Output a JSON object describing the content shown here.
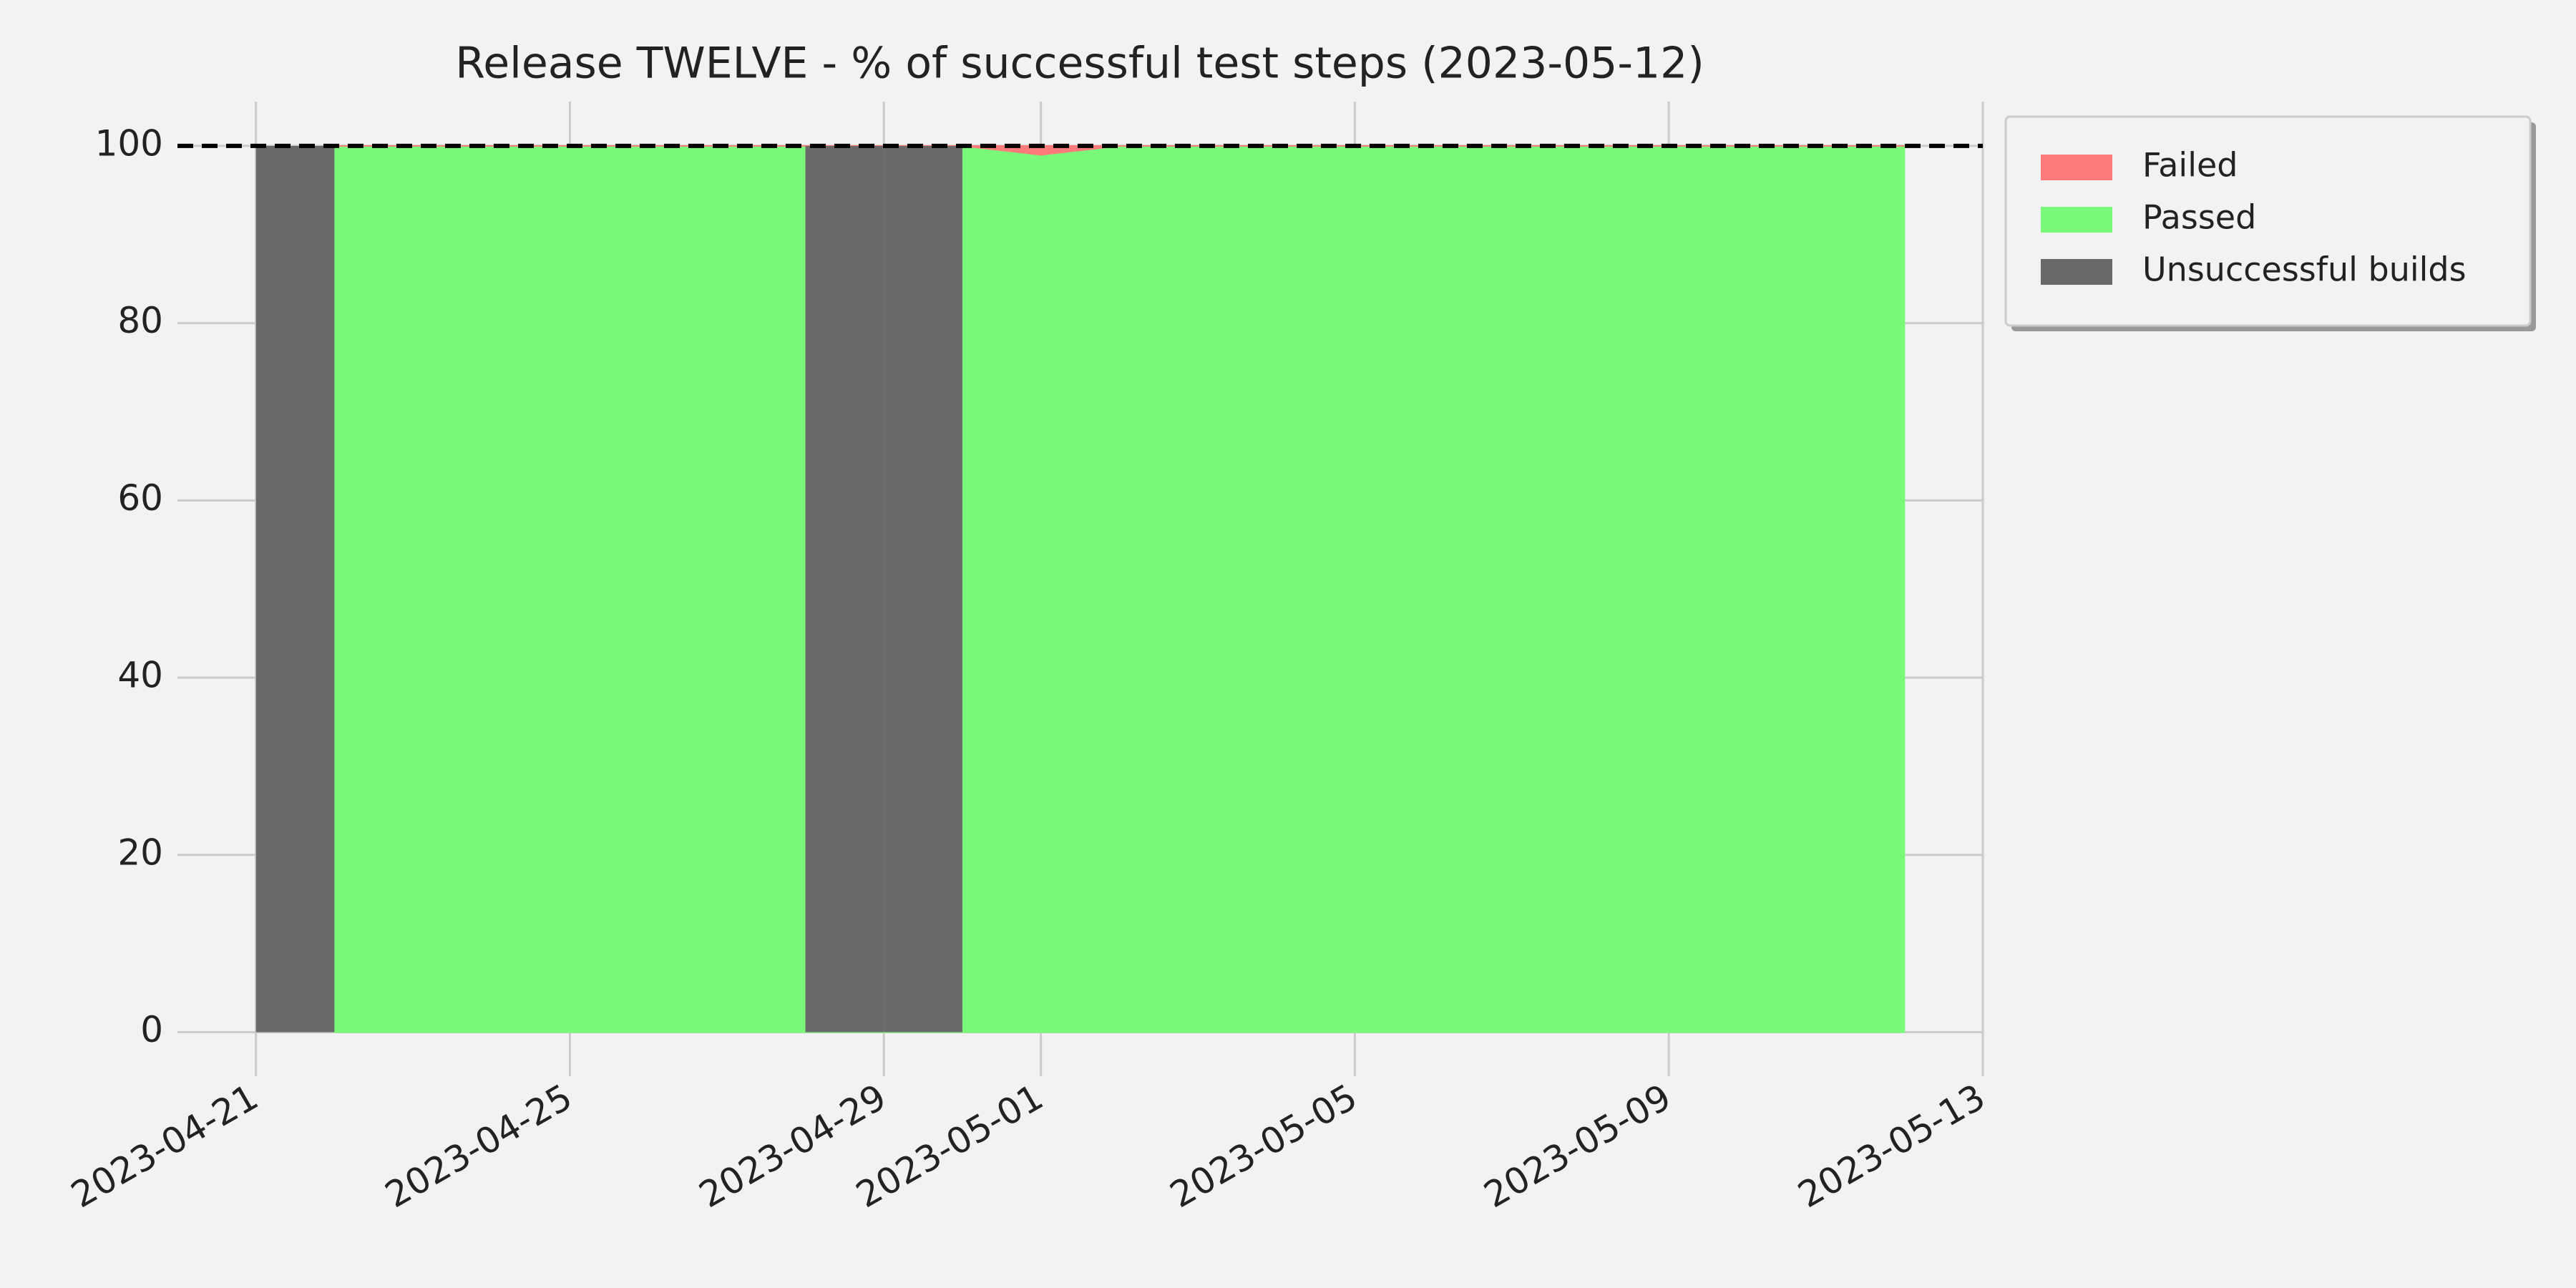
{
  "chart_data": {
    "type": "area",
    "title": "Release TWELVE - % of successful test steps (2023-05-12)",
    "x": [
      "2023-04-21",
      "2023-04-22",
      "2023-04-23",
      "2023-04-24",
      "2023-04-25",
      "2023-04-26",
      "2023-04-27",
      "2023-04-28",
      "2023-04-29",
      "2023-04-30",
      "2023-05-01",
      "2023-05-02",
      "2023-05-03",
      "2023-05-04",
      "2023-05-05",
      "2023-05-06",
      "2023-05-07",
      "2023-05-08",
      "2023-05-09",
      "2023-05-10",
      "2023-05-11",
      "2023-05-12"
    ],
    "series": [
      {
        "name": "Failed",
        "color": "#ff7b7b",
        "kind": "area",
        "values": [
          null,
          0,
          0,
          0,
          0,
          0,
          0,
          0,
          0,
          0,
          1,
          0,
          0,
          0,
          0,
          0,
          0,
          0,
          0,
          0,
          0,
          0
        ]
      },
      {
        "name": "Passed",
        "color": "#79f879",
        "kind": "area",
        "values": [
          null,
          100,
          100,
          100,
          100,
          100,
          100,
          100,
          100,
          100,
          99,
          100,
          100,
          100,
          100,
          100,
          100,
          100,
          100,
          100,
          100,
          100
        ]
      },
      {
        "name": "Unsuccessful builds",
        "color": "#696969",
        "kind": "span",
        "values": [
          100,
          null,
          null,
          null,
          null,
          null,
          null,
          100,
          100,
          null,
          null,
          null,
          null,
          null,
          null,
          null,
          null,
          null,
          null,
          null,
          null,
          null
        ]
      }
    ],
    "reference_line": 100,
    "xlim": [
      "2023-04-20",
      "2023-05-13"
    ],
    "xticks": [
      "2023-04-21",
      "2023-04-25",
      "2023-04-29",
      "2023-05-01",
      "2023-05-05",
      "2023-05-09",
      "2023-05-13"
    ],
    "ylim": [
      -4,
      105
    ],
    "yticks": [
      0,
      20,
      40,
      60,
      80,
      100
    ],
    "grid": true,
    "legend": "outside-upper-right"
  }
}
